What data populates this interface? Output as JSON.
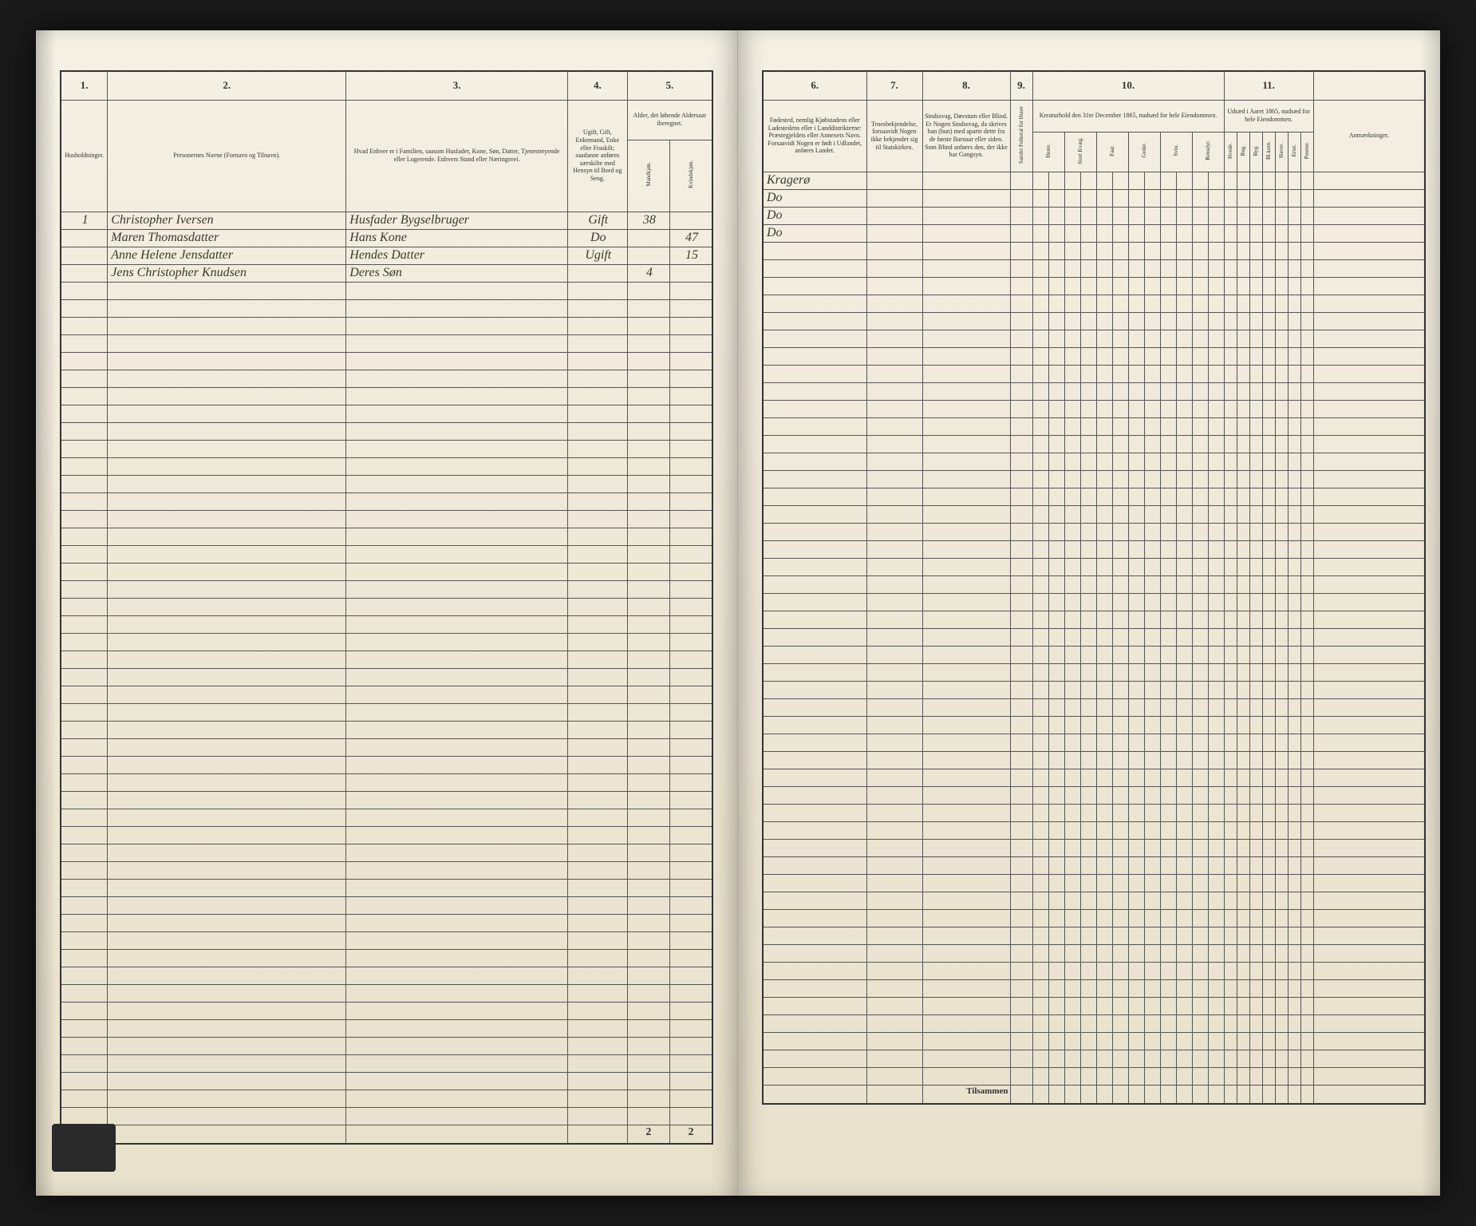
{
  "leftPage": {
    "columnNumbers": [
      "1.",
      "2.",
      "3.",
      "4.",
      "5."
    ],
    "headers": {
      "col1": "Husholdninger.",
      "col2": "Personernes Navne (Fornavn og Tilnavn).",
      "col3": "Hvad Enhver er i Familien, saasom Husfader, Kone, Søn, Datter, Tjenestetyende eller Logerende. Enhvers Stand eller Næringsvei.",
      "col4": "Ugift, Gift, Enkemand, Enke eller Fraskilt; saadanne anføres særskilte med Hensyn til Bord og Seng.",
      "col5": "Alder, det løbende Aldersaar iberegnet.",
      "col5a": "Mandkjøn.",
      "col5b": "Kvindekjøn."
    },
    "rows": [
      {
        "num": "1",
        "name": "Christopher Iversen",
        "role": "Husfader Bygselbruger",
        "status": "Gift",
        "m": "38",
        "f": ""
      },
      {
        "num": "",
        "name": "Maren Thomasdatter",
        "role": "Hans Kone",
        "status": "Do",
        "m": "",
        "f": "47"
      },
      {
        "num": "",
        "name": "Anne Helene Jensdatter",
        "role": "Hendes Datter",
        "status": "Ugift",
        "m": "",
        "f": "15"
      },
      {
        "num": "",
        "name": "Jens Christopher Knudsen",
        "role": "Deres Søn",
        "status": "",
        "m": "4",
        "f": ""
      }
    ],
    "sums": {
      "m": "2",
      "f": "2"
    }
  },
  "rightPage": {
    "columnNumbers": [
      "6.",
      "7.",
      "8.",
      "9.",
      "10.",
      "11."
    ],
    "headers": {
      "col6": "Fødested, nemlig Kjøbstadens eller Ladestedens eller i Landdistrikterne: Præstegjeldets eller Annexets Navn. Forsaavidt Nogen er født i Udlandet, anføres Landet.",
      "col7": "Troesbekjendelse, forsaavidt Nogen ikke bekjender sig til Statskirken.",
      "col8": "Sindssvag, Døvstum eller Blind. Er Nogen Sindssvag, da skrives han (hun) med aparte dette fra de første Barnaar eller siden. Som Blind anføres den, der ikke har Gangsyn.",
      "col9": "Samlet Folketal for Huset",
      "col10": "Kreaturhold den 31te December 1865, nudsæd for hele Eiendommen.",
      "col10_subs": [
        "Heste.",
        "Stort Kvæg.",
        "Faar.",
        "Geder.",
        "Svin.",
        "Rensdyr."
      ],
      "col11": "Udsæd i Aaret 1865, nudsæd for hele Eiendommen.",
      "col11_subs": [
        "Hvede.",
        "Rug.",
        "Byg.",
        "Bl.korn.",
        "Havre.",
        "Erter.",
        "Poteter."
      ],
      "col_last": "Anmærkninger."
    },
    "rows": [
      {
        "place": "Kragerø"
      },
      {
        "place": "Do"
      },
      {
        "place": "Do"
      },
      {
        "place": "Do"
      }
    ],
    "tilsammen": "Tilsammen"
  },
  "colors": {
    "paper": "#ede7d6",
    "ink": "#333333",
    "handwriting": "#3a3a2a",
    "background": "#1a1a1a"
  },
  "emptyRowCount": 48
}
